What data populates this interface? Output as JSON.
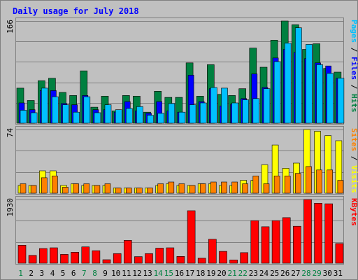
{
  "chart_data": {
    "type": "bar",
    "title": "Daily usage for July 2018",
    "x": [
      "1",
      "2",
      "3",
      "4",
      "5",
      "6",
      "7",
      "8",
      "9",
      "10",
      "11",
      "12",
      "13",
      "14",
      "15",
      "16",
      "17",
      "18",
      "19",
      "20",
      "21",
      "22",
      "23",
      "24",
      "25",
      "26",
      "27",
      "28",
      "29",
      "30",
      "31"
    ],
    "weekend_days": [
      1,
      7,
      8,
      14,
      15,
      21,
      22,
      28,
      29
    ],
    "colors": {
      "hits": "#008040",
      "files": "#0000ff",
      "pages": "#00c0ff",
      "visits": "#ffff00",
      "sites": "#ff8000",
      "kbytes": "#ff0000",
      "background": "#c0c0c0",
      "frame": "#808080",
      "title_text": "#0000ff",
      "day_label": "#000000",
      "weekend_label": "#008040"
    },
    "panels": [
      {
        "id": "hits-files-pages",
        "max_label": "166",
        "ylim": [
          0,
          166
        ],
        "axis_label_parts": [
          {
            "text": "Pages",
            "color": "#00c0ff"
          },
          {
            "text": " / ",
            "color": "#000000"
          },
          {
            "text": "Files",
            "color": "#0000ff"
          },
          {
            "text": " / ",
            "color": "#000000"
          },
          {
            "text": "Hits",
            "color": "#008040"
          }
        ],
        "series": [
          {
            "name": "Hits",
            "color": "#008040",
            "values": [
              57,
              37,
              69,
              73,
              50,
              45,
              85,
              26,
              44,
              20,
              45,
              44,
              18,
              52,
              42,
              42,
              98,
              44,
              95,
              47,
              45,
              56,
              122,
              91,
              135,
              166,
              160,
              120,
              129,
              89,
              83
            ]
          },
          {
            "name": "Files",
            "color": "#0000ff",
            "values": [
              33,
              22,
              53,
              53,
              32,
              30,
              45,
              22,
              22,
              18,
              35,
              20,
              16,
              35,
              20,
              18,
              78,
              35,
              56,
              28,
              31,
              40,
              80,
              58,
              106,
              120,
              115,
              105,
              98,
              93,
              73
            ]
          },
          {
            "name": "Pages",
            "color": "#00c0ff",
            "values": [
              21,
              17,
              57,
              43,
              30,
              18,
              43,
              17,
              30,
              22,
              24,
              27,
              13,
              16,
              32,
              18,
              30,
              33,
              58,
              57,
              33,
              38,
              40,
              56,
              100,
              130,
              155,
              128,
              95,
              81,
              73
            ]
          }
        ]
      },
      {
        "id": "visits-sites",
        "max_label": "74",
        "ylim": [
          0,
          74
        ],
        "axis_label_parts": [
          {
            "text": "Sites",
            "color": "#ff8000"
          },
          {
            "text": " / ",
            "color": "#000000"
          },
          {
            "text": "Visits",
            "color": "#ffff00"
          }
        ],
        "series": [
          {
            "name": "Visits",
            "color": "#ffff00",
            "values": [
              9,
              9,
              26,
              26,
              9,
              11,
              9,
              9,
              9,
              6,
              6,
              6,
              6,
              9,
              11,
              9,
              9,
              11,
              11,
              9,
              9,
              15,
              15,
              33,
              56,
              29,
              35,
              74,
              72,
              67,
              61
            ]
          },
          {
            "name": "Sites",
            "color": "#ff8000",
            "values": [
              11,
              9,
              18,
              20,
              7,
              11,
              11,
              9,
              11,
              6,
              6,
              6,
              6,
              11,
              13,
              11,
              9,
              11,
              13,
              13,
              13,
              11,
              20,
              11,
              20,
              20,
              23,
              31,
              27,
              27,
              15
            ]
          }
        ]
      },
      {
        "id": "kbytes",
        "max_label": "1930",
        "ylim": [
          0,
          1930
        ],
        "axis_label_parts": [
          {
            "text": "KBytes",
            "color": "#ff0000"
          }
        ],
        "series": [
          {
            "name": "KBytes",
            "color": "#ff0000",
            "values": [
              545,
              237,
              446,
              466,
              268,
              332,
              495,
              380,
              106,
              291,
              691,
              200,
              290,
              456,
              466,
              205,
              1590,
              151,
              725,
              359,
              100,
              320,
              1290,
              1104,
              1290,
              1380,
              1119,
              1930,
              1817,
              1801,
              596
            ]
          }
        ]
      }
    ]
  }
}
